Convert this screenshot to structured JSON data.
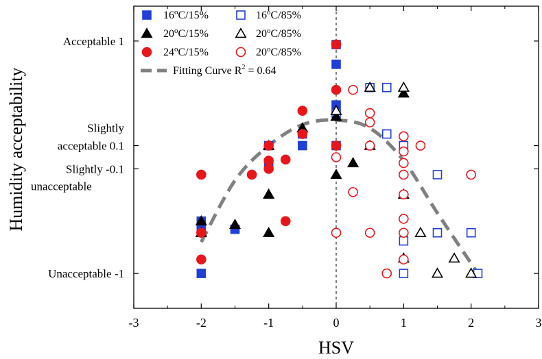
{
  "chart_data": {
    "type": "scatter",
    "xlabel": "HSV",
    "ylabel": "Humidity acceptability",
    "xlim": [
      -3,
      3
    ],
    "ylim": [
      -1.3,
      1.3
    ],
    "grid": false,
    "legend_position": "top-left",
    "x_ticks": [
      {
        "value": -3,
        "label": "-3"
      },
      {
        "value": -2,
        "label": "-2"
      },
      {
        "value": -1,
        "label": "-1"
      },
      {
        "value": 0,
        "label": "0"
      },
      {
        "value": 1,
        "label": "1"
      },
      {
        "value": 2,
        "label": "2"
      },
      {
        "value": 3,
        "label": "3"
      }
    ],
    "y_ticks": [
      {
        "value": 1,
        "lines": [
          "Acceptable 1"
        ]
      },
      {
        "value": 0.1,
        "lines": [
          "Slightly",
          "acceptable 0.1"
        ]
      },
      {
        "value": -0.1,
        "lines": [
          "Slightly  -0.1",
          "unacceptable"
        ]
      },
      {
        "value": -1,
        "lines": [
          "Unacceptable -1"
        ]
      }
    ],
    "reference_line_x": 0,
    "series": [
      {
        "name": "16°C/15%",
        "label_base": "16",
        "label_rest": "C/15%",
        "marker": "square",
        "filled": true,
        "color": "#1f3fd6",
        "points": [
          [
            -2,
            -0.55
          ],
          [
            -2,
            -0.62
          ],
          [
            -2,
            -1.0
          ],
          [
            -1.5,
            -0.62
          ],
          [
            -1,
            0.1
          ],
          [
            -1,
            -0.05
          ],
          [
            -0.5,
            0.1
          ],
          [
            -0.5,
            0.2
          ],
          [
            0,
            0.1
          ],
          [
            0,
            0.45
          ],
          [
            0,
            0.97
          ],
          [
            0,
            0.8
          ]
        ]
      },
      {
        "name": "16°C/85%",
        "label_base": "16",
        "label_rest": "C/85%",
        "marker": "square",
        "filled": false,
        "color": "#1f3fd6",
        "points": [
          [
            0,
            0.38
          ],
          [
            0.5,
            0.6
          ],
          [
            0.75,
            0.6
          ],
          [
            0.75,
            0.2
          ],
          [
            1,
            0.1
          ],
          [
            1,
            -0.72
          ],
          [
            1,
            -1.0
          ],
          [
            1.5,
            -0.15
          ],
          [
            1.5,
            -0.65
          ],
          [
            2,
            -0.65
          ],
          [
            2.1,
            -1.0
          ]
        ]
      },
      {
        "name": "20°C/15%",
        "label_base": "20",
        "label_rest": "C/15%",
        "marker": "triangle",
        "filled": true,
        "color": "#000000",
        "points": [
          [
            -2,
            -0.55
          ],
          [
            -2,
            -0.65
          ],
          [
            -1.5,
            -0.58
          ],
          [
            -1,
            0.1
          ],
          [
            -1,
            -0.32
          ],
          [
            -1,
            -0.65
          ],
          [
            -0.5,
            0.25
          ],
          [
            0,
            0.35
          ],
          [
            0,
            -0.15
          ],
          [
            0.25,
            -0.05
          ],
          [
            1,
            0.55
          ]
        ]
      },
      {
        "name": "20°C/85%",
        "label_base": "20",
        "label_rest": "C/85%",
        "marker": "triangle",
        "filled": false,
        "color": "#000000",
        "points": [
          [
            0,
            0.4
          ],
          [
            0.5,
            0.6
          ],
          [
            0.5,
            0.1
          ],
          [
            1,
            0.6
          ],
          [
            1,
            -0.32
          ],
          [
            1,
            -0.87
          ],
          [
            1.25,
            -0.65
          ],
          [
            1.5,
            -1.0
          ],
          [
            1.75,
            -0.87
          ],
          [
            2,
            -1.0
          ]
        ]
      },
      {
        "name": "24°C/15%",
        "label_base": "24",
        "label_rest": "C/15%",
        "marker": "circle",
        "filled": true,
        "color": "#e8161b",
        "points": [
          [
            -2,
            -0.15
          ],
          [
            -2,
            -0.65
          ],
          [
            -2,
            -0.88
          ],
          [
            -1.25,
            -0.15
          ],
          [
            -1,
            -0.1
          ],
          [
            -1,
            -0.03
          ],
          [
            -1,
            0.1
          ],
          [
            -0.75,
            -0.02
          ],
          [
            -0.75,
            -0.55
          ],
          [
            -0.5,
            0.2
          ],
          [
            -0.5,
            0.4
          ],
          [
            0,
            0.1
          ],
          [
            0,
            0.58
          ],
          [
            0,
            0.97
          ]
        ]
      },
      {
        "name": "20°C/85%",
        "label_base": "20",
        "label_rest": "C/85%",
        "marker": "circle",
        "filled": false,
        "color": "#e8161b",
        "points": [
          [
            0,
            -0.65
          ],
          [
            0,
            0.0
          ],
          [
            0.25,
            0.58
          ],
          [
            0.25,
            -0.3
          ],
          [
            0.5,
            0.1
          ],
          [
            0.5,
            0.3
          ],
          [
            0.5,
            0.38
          ],
          [
            0.5,
            -0.65
          ],
          [
            0.75,
            -1.0
          ],
          [
            1,
            0.18
          ],
          [
            1,
            0.05
          ],
          [
            1,
            -0.05
          ],
          [
            1,
            -0.15
          ],
          [
            1,
            -0.32
          ],
          [
            1,
            -0.53
          ],
          [
            1,
            -0.65
          ],
          [
            1,
            -0.88
          ],
          [
            1.25,
            0.1
          ],
          [
            2,
            -0.15
          ]
        ]
      }
    ],
    "fit_curve": {
      "name": "Fitting Curve R² = 0.64",
      "label_base": "Fitting Curve R",
      "label_sup": "2",
      "label_rest": " = 0.64",
      "color": "#808080",
      "points": [
        [
          -2,
          -0.73
        ],
        [
          -1.5,
          -0.2
        ],
        [
          -1,
          0.1
        ],
        [
          -0.5,
          0.28
        ],
        [
          0,
          0.32
        ],
        [
          0.5,
          0.25
        ],
        [
          1,
          -0.03
        ],
        [
          1.5,
          -0.48
        ],
        [
          2.1,
          -1.0
        ]
      ]
    }
  }
}
